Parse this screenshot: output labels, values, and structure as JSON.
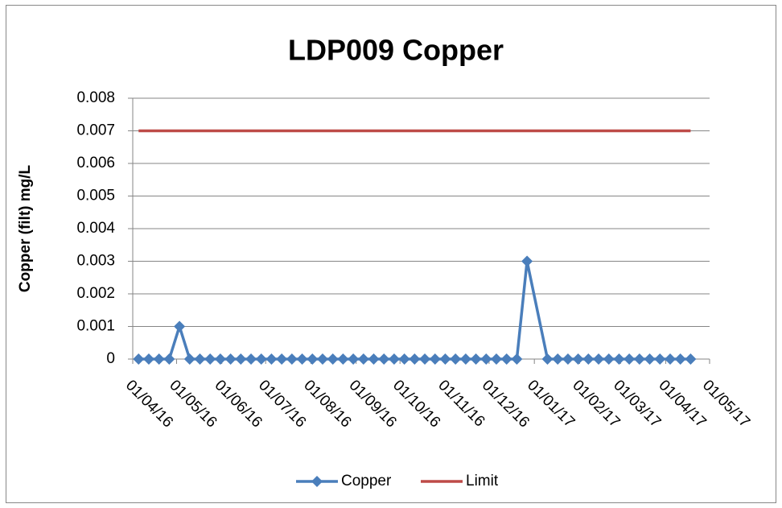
{
  "chart_data": {
    "type": "line",
    "title": "LDP009 Copper",
    "y_label": "Copper (filt) mg/L",
    "x": [
      "05/04/16",
      "12/04/16",
      "19/04/16",
      "26/04/16",
      "03/05/16",
      "10/05/16",
      "17/05/16",
      "24/05/16",
      "31/05/16",
      "07/06/16",
      "14/06/16",
      "21/06/16",
      "28/06/16",
      "05/07/16",
      "12/07/16",
      "19/07/16",
      "26/07/16",
      "02/08/16",
      "09/08/16",
      "16/08/16",
      "23/08/16",
      "30/08/16",
      "06/09/16",
      "13/09/16",
      "20/09/16",
      "27/09/16",
      "04/10/16",
      "11/10/16",
      "18/10/16",
      "25/10/16",
      "01/11/16",
      "08/11/16",
      "15/11/16",
      "22/11/16",
      "29/11/16",
      "06/12/16",
      "13/12/16",
      "20/12/16",
      "27/12/16",
      "10/01/17",
      "17/01/17",
      "24/01/17",
      "31/01/17",
      "07/02/17",
      "14/02/17",
      "21/02/17",
      "28/02/17",
      "07/03/17",
      "14/03/17",
      "21/03/17",
      "28/03/17",
      "04/04/17",
      "11/04/17",
      "18/04/17"
    ],
    "series": [
      {
        "name": "Copper",
        "color": "#4a7ebb",
        "marker": "diamond",
        "values": [
          0,
          0,
          0,
          0,
          0.001,
          0,
          0,
          0,
          0,
          0,
          0,
          0,
          0,
          0,
          0,
          0,
          0,
          0,
          0,
          0,
          0,
          0,
          0,
          0,
          0,
          0,
          0,
          0,
          0,
          0,
          0,
          0,
          0,
          0,
          0,
          0,
          0,
          0,
          0.003,
          0,
          0,
          0,
          0,
          0,
          0,
          0,
          0,
          0,
          0,
          0,
          0,
          0,
          0,
          0
        ]
      },
      {
        "name": "Limit",
        "color": "#be4b48",
        "marker": "none",
        "values": [
          0.007,
          0.007,
          0.007,
          0.007,
          0.007,
          0.007,
          0.007,
          0.007,
          0.007,
          0.007,
          0.007,
          0.007,
          0.007,
          0.007,
          0.007,
          0.007,
          0.007,
          0.007,
          0.007,
          0.007,
          0.007,
          0.007,
          0.007,
          0.007,
          0.007,
          0.007,
          0.007,
          0.007,
          0.007,
          0.007,
          0.007,
          0.007,
          0.007,
          0.007,
          0.007,
          0.007,
          0.007,
          0.007,
          0.007,
          0.007,
          0.007,
          0.007,
          0.007,
          0.007,
          0.007,
          0.007,
          0.007,
          0.007,
          0.007,
          0.007,
          0.007,
          0.007,
          0.007,
          0.007
        ]
      }
    ],
    "xlim": [
      "01/04/16",
      "01/05/17"
    ],
    "xticks": [
      "01/04/16",
      "01/05/16",
      "01/06/16",
      "01/07/16",
      "01/08/16",
      "01/09/16",
      "01/10/16",
      "01/11/16",
      "01/12/16",
      "01/01/17",
      "01/02/17",
      "01/03/17",
      "01/04/17",
      "01/05/17"
    ],
    "ylim": [
      0,
      0.008
    ],
    "yticks": [
      0,
      0.001,
      0.002,
      0.003,
      0.004,
      0.005,
      0.006,
      0.007,
      0.008
    ],
    "grid": true,
    "legend": "bottom"
  }
}
